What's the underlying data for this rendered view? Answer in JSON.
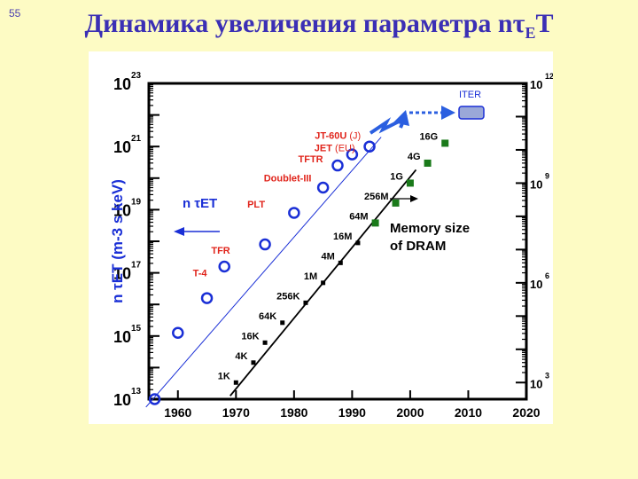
{
  "slide": {
    "number": "55",
    "title_main": "Динамика увеличения параметра nτ",
    "title_sub": "E",
    "title_tail": "T"
  },
  "chart_data": {
    "type": "scatter",
    "x_ticks": [
      "1960",
      "1970",
      "1980",
      "1990",
      "2000",
      "2010",
      "2020"
    ],
    "xlim": [
      1955,
      2020
    ],
    "y_left": {
      "label": "n τET (m-3 s keV)",
      "scale": "log",
      "ylim": [
        10000000000000.0,
        1e+23
      ],
      "ticks": [
        {
          "base": "10",
          "exp": "13",
          "value": 13
        },
        {
          "base": "10",
          "exp": "15",
          "value": 15
        },
        {
          "base": "10",
          "exp": "17",
          "value": 17
        },
        {
          "base": "10",
          "exp": "19",
          "value": 19
        },
        {
          "base": "10",
          "exp": "21",
          "value": 21
        },
        {
          "base": "10",
          "exp": "23",
          "value": 23
        }
      ]
    },
    "y_right": {
      "label": "Memory size of DRAM",
      "scale": "log",
      "ticks": [
        {
          "base": "10",
          "exp": "3",
          "value": 3
        },
        {
          "base": "10",
          "exp": "6",
          "value": 6
        },
        {
          "base": "10",
          "exp": "9",
          "value": 9
        },
        {
          "base": "10",
          "exp": "12",
          "value": 12
        }
      ]
    },
    "series": [
      {
        "name": "n τE T",
        "color": "#1a2fd6",
        "marker": "open-circle",
        "points": [
          {
            "x": 1956,
            "log_y": 13.0
          },
          {
            "x": 1960,
            "log_y": 15.1
          },
          {
            "x": 1965,
            "log_y": 16.2
          },
          {
            "x": 1968,
            "log_y": 17.2
          },
          {
            "x": 1975,
            "log_y": 17.9
          },
          {
            "x": 1980,
            "log_y": 18.9
          },
          {
            "x": 1985,
            "log_y": 19.7
          },
          {
            "x": 1987.5,
            "log_y": 20.4
          },
          {
            "x": 1990,
            "log_y": 20.75
          },
          {
            "x": 1993,
            "log_y": 21.0
          }
        ]
      },
      {
        "name": "Memory size of DRAM",
        "color": "#000000",
        "marker": "square",
        "points": [
          {
            "x": 1970,
            "log_y": 3.0,
            "label": "1K"
          },
          {
            "x": 1973,
            "log_y": 3.6,
            "label": "4K"
          },
          {
            "x": 1975,
            "log_y": 4.2,
            "label": "16K"
          },
          {
            "x": 1978,
            "log_y": 4.8,
            "label": "64K"
          },
          {
            "x": 1982,
            "log_y": 5.4,
            "label": "256K"
          },
          {
            "x": 1985,
            "log_y": 6.0,
            "label": "1M"
          },
          {
            "x": 1988,
            "log_y": 6.6,
            "label": "4M"
          },
          {
            "x": 1991,
            "log_y": 7.2,
            "label": "16M"
          },
          {
            "x": 1994,
            "log_y": 7.8,
            "label": "64M",
            "color": "#1a7a1a"
          },
          {
            "x": 1997.5,
            "log_y": 8.4,
            "label": "256M",
            "color": "#1a7a1a"
          },
          {
            "x": 2000,
            "log_y": 9.0,
            "label": "1G",
            "color": "#1a7a1a"
          },
          {
            "x": 2003,
            "log_y": 9.6,
            "label": "4G",
            "color": "#1a7a1a"
          },
          {
            "x": 2006,
            "log_y": 10.2,
            "label": "16G",
            "color": "#1a7a1a"
          }
        ]
      }
    ],
    "device_labels": [
      {
        "text": "T-4",
        "color": "#e0241b"
      },
      {
        "text": "TFR",
        "color": "#e0241b"
      },
      {
        "text": "PLT",
        "color": "#e0241b"
      },
      {
        "text": "Doublet-III",
        "color": "#e0241b"
      },
      {
        "text": "TFTR",
        "color": "#e0241b"
      },
      {
        "text": "JET",
        "suffix": "(EU)",
        "color": "#e0241b"
      },
      {
        "text": "JT-60U",
        "suffix": "(J)",
        "color": "#e0241b"
      },
      {
        "text": "ITER",
        "color": "#1a2fd6"
      }
    ],
    "legend": {
      "fusion": "n τET",
      "memory_line1": "Memory size",
      "memory_line2": "of DRAM"
    }
  }
}
